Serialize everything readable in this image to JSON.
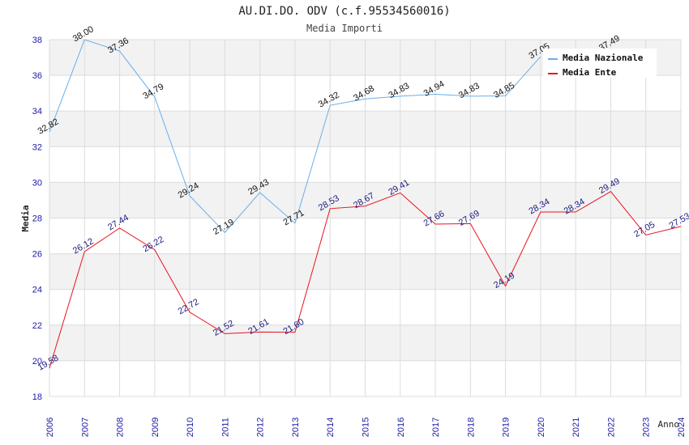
{
  "chart_data": {
    "type": "line",
    "title": "AU.DI.DO. ODV (c.f.95534560016)",
    "subtitle": "Media Importi",
    "xlabel": "Anno",
    "ylabel": "Media",
    "ylim": [
      18,
      38
    ],
    "yticks": [
      18,
      20,
      22,
      24,
      26,
      28,
      30,
      32,
      34,
      36,
      38
    ],
    "categories": [
      "2006",
      "2007",
      "2008",
      "2009",
      "2010",
      "2011",
      "2012",
      "2013",
      "2014",
      "2015",
      "2016",
      "2017",
      "2018",
      "2019",
      "2020",
      "2021",
      "2022",
      "2023",
      "2024"
    ],
    "series": [
      {
        "name": "Media Nazionale",
        "color": "#6aaee8",
        "label_color": "#111111",
        "values": [
          32.82,
          38.0,
          37.36,
          34.79,
          29.24,
          27.19,
          29.43,
          27.71,
          34.32,
          34.68,
          34.83,
          34.94,
          34.83,
          34.85,
          37.05,
          null,
          37.49,
          null,
          null
        ],
        "labels": [
          "32.82",
          "38.00",
          "37.36",
          "34.79",
          "29.24",
          "27.19",
          "29.43",
          "27.71",
          "34.32",
          "34.68",
          "34.83",
          "34.94",
          "34.83",
          "34.85",
          "37.05",
          null,
          "37.49",
          null,
          null
        ]
      },
      {
        "name": "Media Ente",
        "color": "#e8141e",
        "label_color": "#1a1a80",
        "values": [
          19.58,
          26.12,
          27.44,
          26.22,
          22.72,
          21.52,
          21.61,
          21.6,
          28.53,
          28.67,
          29.41,
          27.66,
          27.69,
          24.19,
          28.34,
          28.34,
          29.49,
          27.05,
          27.53
        ],
        "labels": [
          "19.58",
          "26.12",
          "27.44",
          "26.22",
          "22.72",
          "21.52",
          "21.61",
          "21.60",
          "28.53",
          "28.67",
          "29.41",
          "27.66",
          "27.69",
          "24.19",
          "28.34",
          "28.34",
          "29.49",
          "27.05",
          "27.53"
        ]
      }
    ],
    "legend_position": "top-right",
    "grid": true
  }
}
